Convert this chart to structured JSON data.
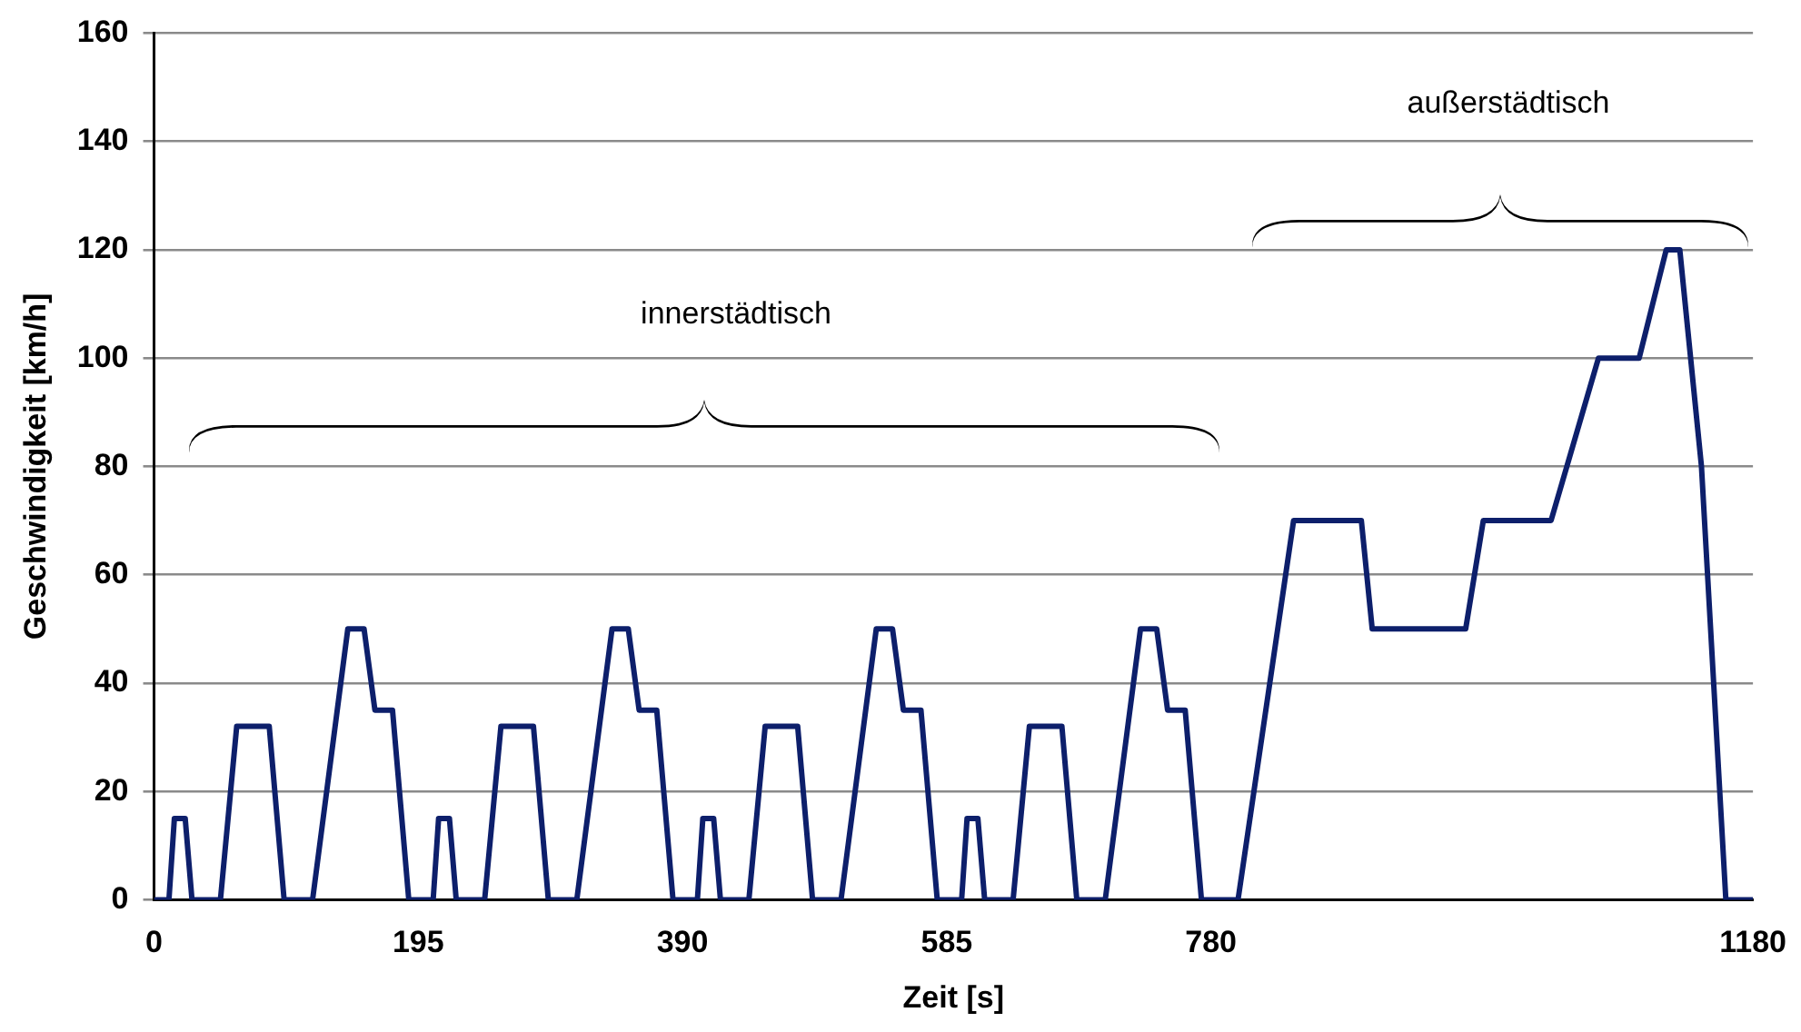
{
  "chart_data": {
    "type": "line",
    "xlabel": "Zeit [s]",
    "ylabel": "Geschwindigkeit [km/h]",
    "x": [
      0,
      11,
      15,
      23,
      28,
      49,
      61,
      85,
      96,
      117,
      143,
      155,
      163,
      176,
      188,
      195,
      206,
      210,
      218,
      223,
      244,
      256,
      280,
      291,
      312,
      338,
      350,
      358,
      371,
      383,
      390,
      401,
      405,
      413,
      418,
      439,
      451,
      475,
      486,
      507,
      533,
      545,
      553,
      566,
      578,
      585,
      596,
      600,
      608,
      613,
      634,
      646,
      670,
      681,
      702,
      728,
      740,
      748,
      761,
      773,
      780,
      800,
      841,
      891,
      899,
      968,
      981,
      1031,
      1066,
      1096,
      1116,
      1126,
      1142,
      1160,
      1180
    ],
    "series": [
      {
        "color": "#0d1f6b",
        "values": [
          0,
          0,
          15,
          15,
          0,
          0,
          32,
          32,
          0,
          0,
          50,
          50,
          35,
          35,
          0,
          0,
          0,
          15,
          15,
          0,
          0,
          32,
          32,
          0,
          0,
          50,
          50,
          35,
          35,
          0,
          0,
          0,
          15,
          15,
          0,
          0,
          32,
          32,
          0,
          0,
          50,
          50,
          35,
          35,
          0,
          0,
          0,
          15,
          15,
          0,
          0,
          32,
          32,
          0,
          0,
          50,
          50,
          35,
          35,
          0,
          0,
          0,
          70,
          70,
          50,
          50,
          70,
          70,
          100,
          100,
          120,
          120,
          80,
          0,
          0
        ]
      }
    ],
    "xlim": [
      0,
      1180
    ],
    "xticks": [
      0,
      195,
      390,
      585,
      780,
      1180
    ],
    "ylim": [
      0,
      160
    ],
    "yticks": [
      0,
      20,
      40,
      60,
      80,
      100,
      120,
      140,
      160
    ],
    "grid": "y",
    "legend": false,
    "marker": "none",
    "line_style": "solid",
    "annotations": [
      "innerstädtisch",
      "außerstädtisch"
    ]
  }
}
